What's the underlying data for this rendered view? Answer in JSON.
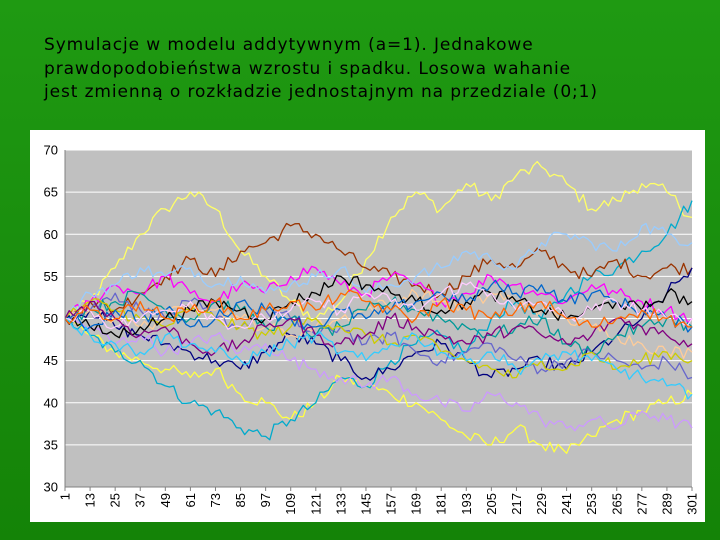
{
  "slide": {
    "title_lines": [
      "Symulacje w modelu addytywnym (a=1). Jednakowe",
      "prawdopodobieństwa wzrostu i spadku. Losowa wahanie",
      "jest zmienną o rozkładzie jednostajnym na przedziale (0;1)"
    ]
  },
  "colors": {
    "plot_bg": "#c0c0c0",
    "gridline": "#ffffff",
    "slide_green": "#1a8f0e"
  },
  "chart_data": {
    "type": "line",
    "title": "",
    "xlabel": "",
    "ylabel": "",
    "ylim": [
      30,
      70
    ],
    "yticks": [
      30,
      35,
      40,
      45,
      50,
      55,
      60,
      65,
      70
    ],
    "xlim": [
      1,
      301
    ],
    "categories": [
      "1",
      "13",
      "25",
      "37",
      "49",
      "61",
      "73",
      "85",
      "97",
      "109",
      "121",
      "133",
      "145",
      "157",
      "169",
      "181",
      "193",
      "205",
      "217",
      "229",
      "241",
      "253",
      "265",
      "277",
      "289",
      "301"
    ],
    "grid": true,
    "legend": "none",
    "series": [
      {
        "name": "s1",
        "color": "#ffff66",
        "values": [
          50,
          52,
          56,
          60,
          63,
          65,
          63,
          58,
          55,
          52,
          50,
          52,
          57,
          62,
          65,
          63,
          66,
          64,
          67,
          68,
          66,
          63,
          64,
          66,
          65,
          62
        ]
      },
      {
        "name": "s2",
        "color": "#ffff44",
        "values": [
          50,
          48,
          46,
          45,
          44,
          43,
          44,
          41,
          40,
          38,
          40,
          43,
          42,
          41,
          40,
          38,
          36,
          35,
          37,
          35,
          34,
          36,
          38,
          39,
          40,
          41
        ]
      },
      {
        "name": "s3",
        "color": "#00aacc",
        "values": [
          50,
          48,
          46,
          45,
          42,
          40,
          39,
          37,
          36,
          38,
          40,
          43,
          42,
          45,
          47,
          48,
          46,
          50,
          52,
          50,
          53,
          55,
          56,
          58,
          60,
          64
        ]
      },
      {
        "name": "s4",
        "color": "#993300",
        "values": [
          50,
          52,
          51,
          53,
          55,
          57,
          55,
          58,
          59,
          61,
          60,
          58,
          56,
          55,
          54,
          53,
          55,
          57,
          56,
          58,
          56,
          55,
          57,
          55,
          56,
          56
        ]
      },
      {
        "name": "s5",
        "color": "#000080",
        "values": [
          50,
          51,
          49,
          48,
          47,
          46,
          45,
          44,
          46,
          48,
          47,
          45,
          43,
          44,
          46,
          47,
          45,
          43,
          44,
          45,
          44,
          46,
          48,
          50,
          53,
          56
        ]
      },
      {
        "name": "s6",
        "color": "#ff00ff",
        "values": [
          50,
          52,
          54,
          53,
          55,
          53,
          52,
          54,
          53,
          55,
          56,
          54,
          53,
          55,
          54,
          52,
          53,
          55,
          54,
          53,
          52,
          54,
          53,
          52,
          51,
          50
        ]
      },
      {
        "name": "s7",
        "color": "#99ccff",
        "values": [
          50,
          53,
          54,
          56,
          55,
          56,
          54,
          55,
          53,
          54,
          55,
          56,
          53,
          54,
          55,
          56,
          58,
          57,
          56,
          59,
          60,
          59,
          58,
          61,
          60,
          59
        ]
      },
      {
        "name": "s8",
        "color": "#6666cc",
        "values": [
          50,
          51,
          53,
          51,
          50,
          52,
          50,
          49,
          51,
          50,
          48,
          49,
          47,
          48,
          46,
          45,
          46,
          47,
          45,
          44,
          45,
          46,
          45,
          44,
          45,
          43
        ]
      },
      {
        "name": "s9",
        "color": "#cc99ff",
        "values": [
          50,
          49,
          47,
          48,
          46,
          47,
          48,
          46,
          47,
          45,
          44,
          43,
          42,
          43,
          41,
          40,
          39,
          41,
          40,
          38,
          37,
          38,
          37,
          39,
          38,
          37
        ]
      },
      {
        "name": "s10",
        "color": "#ffcc99",
        "values": [
          50,
          51,
          50,
          49,
          50,
          52,
          51,
          50,
          49,
          48,
          49,
          50,
          51,
          52,
          53,
          52,
          51,
          53,
          52,
          51,
          50,
          49,
          48,
          47,
          46,
          46
        ]
      },
      {
        "name": "s11",
        "color": "#009999",
        "values": [
          50,
          51,
          52,
          53,
          51,
          50,
          52,
          51,
          49,
          50,
          48,
          49,
          51,
          52,
          51,
          50,
          49,
          48,
          49,
          50,
          47,
          46,
          48,
          49,
          50,
          49
        ]
      },
      {
        "name": "s12",
        "color": "#cccc00",
        "values": [
          50,
          52,
          51,
          50,
          49,
          51,
          50,
          49,
          48,
          49,
          50,
          49,
          48,
          47,
          48,
          46,
          45,
          44,
          43,
          45,
          44,
          46,
          44,
          45,
          46,
          45
        ]
      },
      {
        "name": "s13",
        "color": "#000000",
        "values": [
          50,
          49,
          48,
          49,
          50,
          51,
          52,
          51,
          50,
          52,
          53,
          55,
          54,
          53,
          52,
          51,
          52,
          53,
          52,
          51,
          50,
          51,
          52,
          51,
          53,
          52
        ]
      },
      {
        "name": "s14",
        "color": "#0066cc",
        "values": [
          50,
          49,
          51,
          50,
          51,
          49,
          50,
          52,
          51,
          50,
          49,
          51,
          50,
          51,
          52,
          53,
          52,
          54,
          53,
          54,
          52,
          53,
          52,
          51,
          50,
          49
        ]
      },
      {
        "name": "s15",
        "color": "#ffccff",
        "values": [
          50,
          51,
          49,
          50,
          51,
          52,
          50,
          49,
          50,
          51,
          52,
          51,
          53,
          52,
          51,
          53,
          54,
          53,
          51,
          52,
          50,
          51,
          52,
          51,
          50,
          50
        ]
      },
      {
        "name": "s16",
        "color": "#800080",
        "values": [
          50,
          52,
          50,
          48,
          49,
          47,
          46,
          47,
          49,
          50,
          48,
          47,
          48,
          50,
          49,
          48,
          47,
          48,
          49,
          48,
          47,
          48,
          50,
          49,
          48,
          47
        ]
      },
      {
        "name": "s17",
        "color": "#33ccff",
        "values": [
          50,
          48,
          47,
          46,
          48,
          47,
          46,
          45,
          46,
          47,
          48,
          46,
          45,
          47,
          48,
          46,
          45,
          46,
          44,
          45,
          46,
          45,
          44,
          43,
          42,
          41
        ]
      },
      {
        "name": "s18",
        "color": "#ff6600",
        "values": [
          50,
          51,
          50,
          52,
          50,
          51,
          52,
          50,
          51,
          52,
          51,
          53,
          52,
          51,
          50,
          52,
          51,
          50,
          51,
          52,
          50,
          49,
          50,
          51,
          50,
          49
        ]
      }
    ]
  }
}
